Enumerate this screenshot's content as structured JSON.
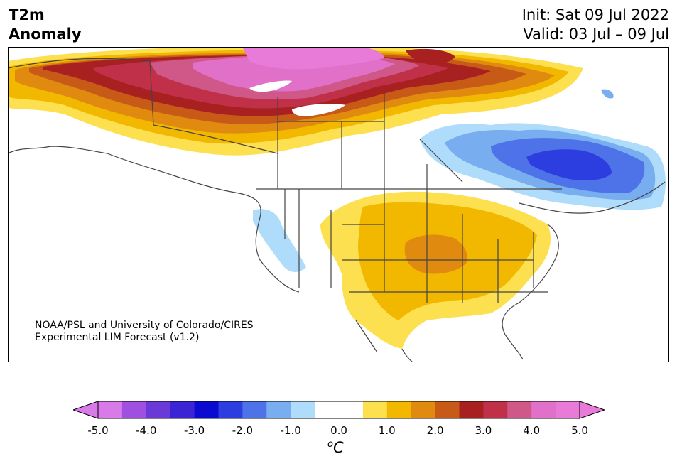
{
  "title": {
    "line1": "T2m",
    "line2": "Anomaly",
    "init": "Init: Sat 09 Jul 2022",
    "valid": "Valid: 03 Jul – 09 Jul"
  },
  "credit": {
    "line1": "NOAA/PSL and University of Colorado/CIRES",
    "line2": "Experimental LIM Forecast (v1.2)"
  },
  "colorbar": {
    "ticks": [
      "-5.0",
      "-4.0",
      "-3.0",
      "-2.0",
      "-1.0",
      "0.0",
      "1.0",
      "2.0",
      "3.0",
      "4.0",
      "5.0"
    ],
    "unit_base": "C",
    "unit_sup": "o",
    "colors": [
      "#d87ae8",
      "#a050e0",
      "#6a3ad8",
      "#3a24d4",
      "#0a0ad0",
      "#2c3ee0",
      "#4e72e8",
      "#78aef0",
      "#aedcfa",
      "#ffffff",
      "#ffffff",
      "#fde050",
      "#f2b800",
      "#e08a10",
      "#c85a18",
      "#a82020",
      "#c03048",
      "#d05888",
      "#e070c8",
      "#e87ad8"
    ],
    "under_color": "#d87ae8",
    "over_color": "#e87ad8"
  }
}
